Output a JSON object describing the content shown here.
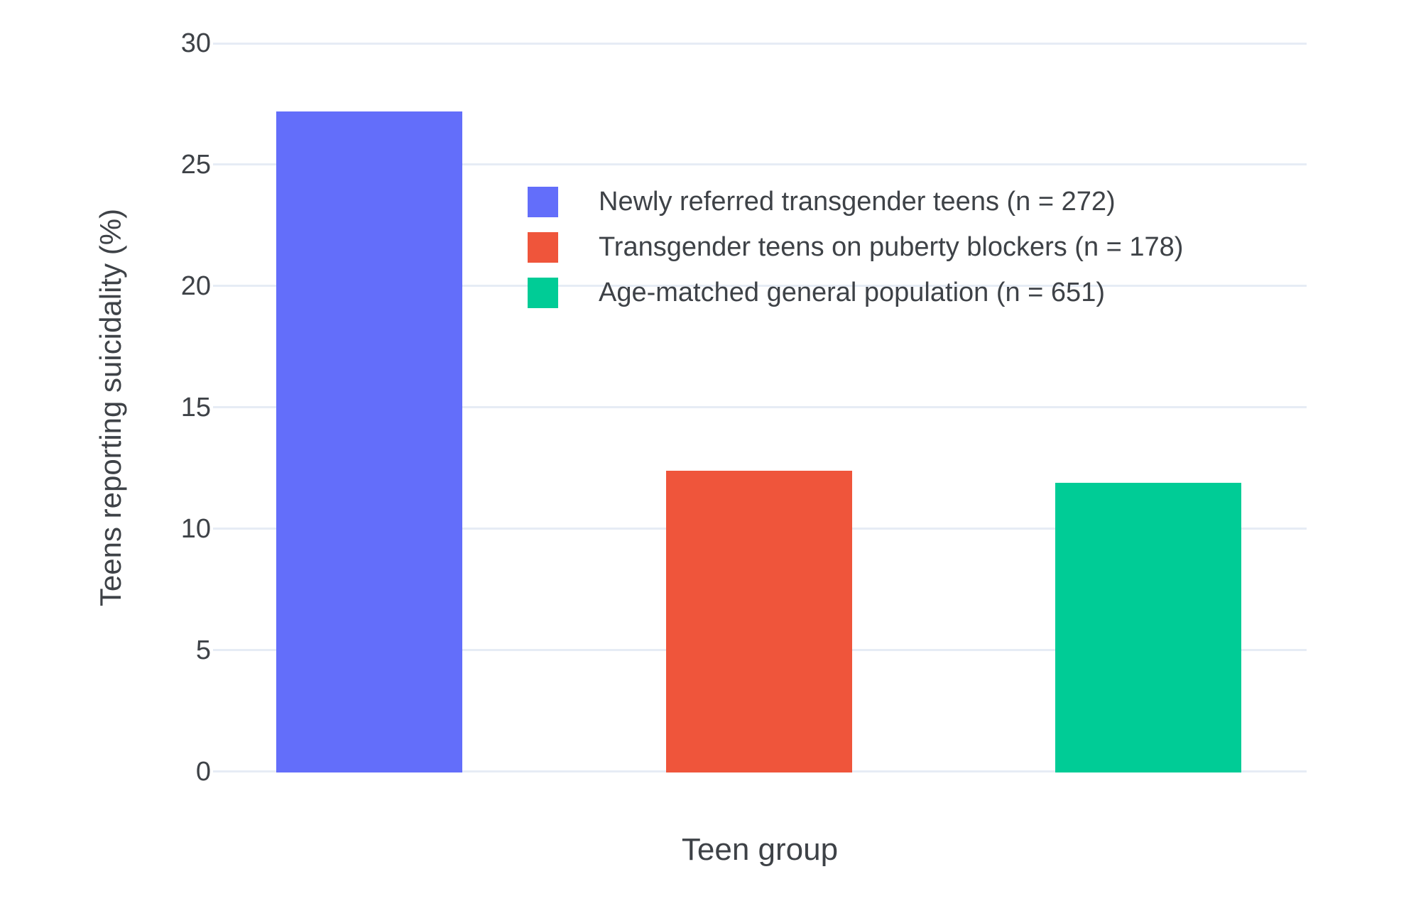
{
  "colors": {
    "background": "#FFFFFF",
    "grid": "#E6ECF5",
    "text": "#3E4247"
  },
  "chart_data": {
    "type": "bar",
    "title": "",
    "xlabel": "Teen group",
    "ylabel": "Teens reporting suicidality (%)",
    "categories": [
      "Newly referred transgender teens (n = 272)",
      "Transgender teens on puberty blockers (n = 178)",
      "Age-matched general population (n = 651)"
    ],
    "values": [
      27.2,
      12.4,
      11.9
    ],
    "bar_colors": [
      "#636EFA",
      "#EF553B",
      "#00CC96"
    ],
    "ylim": [
      0,
      30
    ],
    "yticks": [
      0,
      5,
      10,
      15,
      20,
      25,
      30
    ],
    "ytick_labels": [
      "0",
      "5",
      "10",
      "15",
      "20",
      "25",
      "30"
    ],
    "grid": true,
    "legend_position": "inside-top-center",
    "legend": [
      {
        "label": "Newly referred transgender teens (n = 272)",
        "color": "#636EFA"
      },
      {
        "label": "Transgender teens on puberty blockers (n = 178)",
        "color": "#EF553B"
      },
      {
        "label": "Age-matched general population (n = 651)",
        "color": "#00CC96"
      }
    ]
  }
}
